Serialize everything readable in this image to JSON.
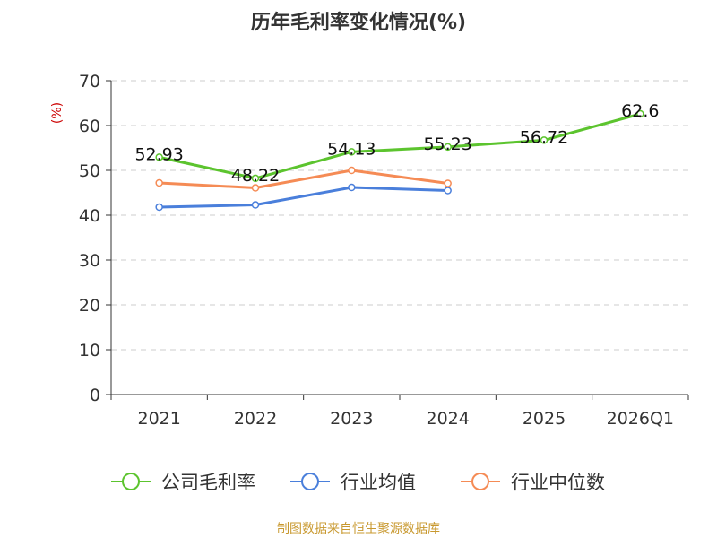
{
  "chart_data": {
    "type": "line",
    "title": "历年毛利率变化情况(%)",
    "ylabel": "(%)",
    "xlabel": "",
    "categories": [
      "2021",
      "2022",
      "2023",
      "2024",
      "2025",
      "2026Q1"
    ],
    "ylim": [
      0,
      70
    ],
    "yticks": [
      0,
      10,
      20,
      30,
      40,
      50,
      60,
      70
    ],
    "grid": true,
    "legend_position": "bottom",
    "series": [
      {
        "name": "公司毛利率",
        "color": "#5cc42e",
        "values": [
          52.93,
          48.22,
          54.13,
          55.23,
          56.72,
          62.6
        ],
        "labels": [
          "52.93",
          "48.22",
          "54.13",
          "55.23",
          "56.72",
          "62.6"
        ]
      },
      {
        "name": "行业均值",
        "color": "#4a7fdb",
        "values": [
          41.8,
          42.3,
          46.2,
          45.5,
          null,
          null
        ]
      },
      {
        "name": "行业中位数",
        "color": "#f58b55",
        "values": [
          47.2,
          46.1,
          50.0,
          47.1,
          null,
          null
        ]
      }
    ],
    "source": "制图数据来自恒生聚源数据库"
  }
}
